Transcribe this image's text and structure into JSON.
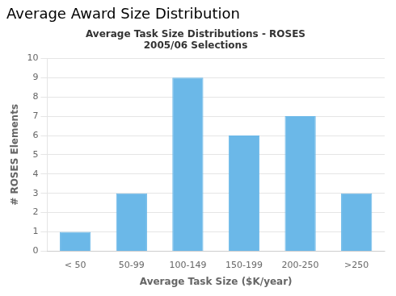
{
  "chart_data": {
    "type": "bar",
    "title": "Average Award Size Distribution",
    "subtitle": "Average Task Size Distributions - ROSES\n2005/06 Selections",
    "xlabel": "Average Task Size ($K/year)",
    "ylabel": "# ROSES Elements",
    "categories": [
      "< 50",
      "50-99",
      "100-149",
      "150-199",
      "200-250",
      ">250"
    ],
    "values": [
      1,
      3,
      9,
      6,
      7,
      3
    ],
    "color": "#6bb8e8",
    "ylim": [
      0,
      10
    ],
    "yticks": [
      0,
      1,
      2,
      3,
      4,
      5,
      6,
      7,
      8,
      9,
      10
    ],
    "grid": true
  }
}
